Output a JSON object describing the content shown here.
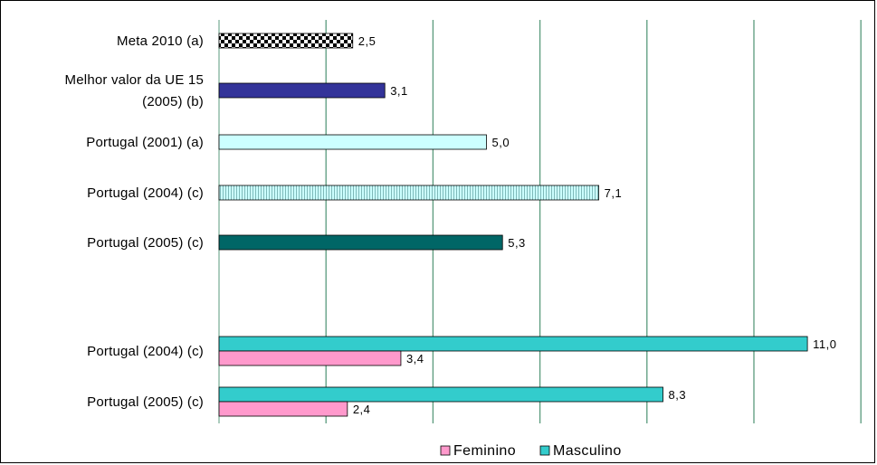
{
  "chart_data": {
    "type": "bar",
    "orientation": "horizontal",
    "xlim": [
      0,
      12
    ],
    "x_grid_step": 2,
    "grid": true,
    "legend_placement": "bottom",
    "colors": {
      "grid": "#5a9a7c",
      "feminino": "#ff99cc",
      "masculino": "#33cccc",
      "dark_blue": "#333399",
      "light_cyan": "#ccffff",
      "teal_dark": "#006666"
    },
    "groups": [
      {
        "label": [
          "Meta 2010 (a)"
        ],
        "bars": [
          {
            "value": 2.5,
            "value_label": "2,5",
            "fill": "checker"
          }
        ]
      },
      {
        "label": [
          "Melhor valor da UE 15",
          "(2005) (b)"
        ],
        "bars": [
          {
            "value": 3.1,
            "value_label": "3,1",
            "fill": "dark_blue"
          }
        ]
      },
      {
        "label": [
          "Portugal (2001) (a)"
        ],
        "bars": [
          {
            "value": 5.0,
            "value_label": "5,0",
            "fill": "light_cyan"
          }
        ]
      },
      {
        "label": [
          "Portugal (2004) (c)"
        ],
        "bars": [
          {
            "value": 7.1,
            "value_label": "7,1",
            "fill": "vstripe"
          }
        ]
      },
      {
        "label": [
          "Portugal (2005) (c)"
        ],
        "bars": [
          {
            "value": 5.3,
            "value_label": "5,3",
            "fill": "teal_dark"
          }
        ]
      },
      {
        "label": [
          "Portugal (2004) (c)"
        ],
        "bars": [
          {
            "series": "Masculino",
            "value": 11.0,
            "value_label": "11,0",
            "fill": "masculino"
          },
          {
            "series": "Feminino",
            "value": 3.4,
            "value_label": "3,4",
            "fill": "feminino"
          }
        ]
      },
      {
        "label": [
          "Portugal (2005) (c)"
        ],
        "bars": [
          {
            "series": "Masculino",
            "value": 8.3,
            "value_label": "8,3",
            "fill": "masculino"
          },
          {
            "series": "Feminino",
            "value": 2.4,
            "value_label": "2,4",
            "fill": "feminino"
          }
        ]
      }
    ],
    "legend": [
      {
        "name": "Feminino",
        "color": "#ff99cc"
      },
      {
        "name": "Masculino",
        "color": "#33cccc"
      }
    ]
  }
}
